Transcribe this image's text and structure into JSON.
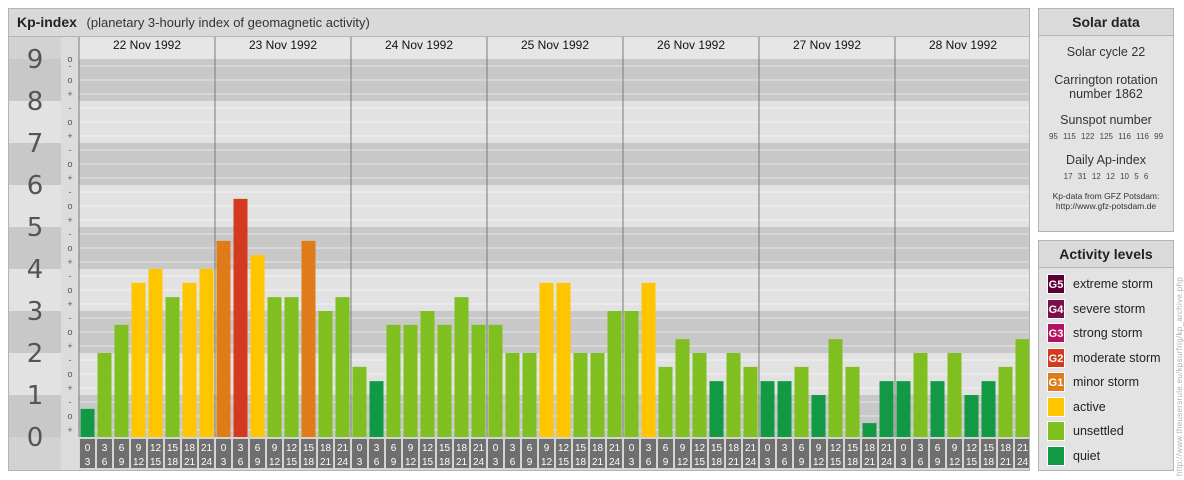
{
  "header": {
    "title": "Kp-index",
    "subtitle": "(planetary 3-hourly index of geomagnetic activity)"
  },
  "chart_data": {
    "type": "bar",
    "title": "Kp-index",
    "subtitle": "(planetary 3-hourly index of geomagnetic activity)",
    "ylim": [
      0,
      9
    ],
    "y_ticks": [
      "0",
      "1",
      "2",
      "3",
      "4",
      "5",
      "6",
      "7",
      "8",
      "9"
    ],
    "minor_tick_symbols": [
      "+",
      "o",
      "-"
    ],
    "dates": [
      "22 Nov 1992",
      "23 Nov 1992",
      "24 Nov 1992",
      "25 Nov 1992",
      "26 Nov 1992",
      "27 Nov 1992",
      "28 Nov 1992"
    ],
    "interval_start": [
      "0",
      "3",
      "6",
      "9",
      "12",
      "15",
      "18",
      "21"
    ],
    "interval_end": [
      "3",
      "6",
      "9",
      "12",
      "15",
      "18",
      "21",
      "24"
    ],
    "values": [
      [
        0.67,
        2.0,
        2.67,
        3.67,
        4.0,
        3.33,
        3.67,
        4.0
      ],
      [
        4.67,
        5.67,
        4.33,
        3.33,
        3.33,
        4.67,
        3.0,
        3.33
      ],
      [
        1.67,
        1.33,
        2.67,
        2.67,
        3.0,
        2.67,
        3.33,
        2.67
      ],
      [
        2.67,
        2.0,
        2.0,
        3.67,
        3.67,
        2.0,
        2.0,
        3.0
      ],
      [
        3.0,
        3.67,
        1.67,
        2.33,
        2.0,
        1.33,
        2.0,
        1.67
      ],
      [
        1.33,
        1.33,
        1.67,
        1.0,
        2.33,
        1.67,
        0.33,
        1.33
      ],
      [
        1.33,
        2.0,
        1.33,
        2.0,
        1.0,
        1.33,
        1.67,
        2.33
      ]
    ],
    "level_colors": {
      "quiet": "#119944",
      "unsettled": "#7fc020",
      "active": "#ffc600",
      "G1": "#e07b1a",
      "G2": "#d43a1f",
      "G3": "#b3125e",
      "G4": "#7a0f4a",
      "G5": "#5b0035"
    }
  },
  "solar": {
    "title": "Solar data",
    "cycle": "Solar cycle 22",
    "carrington_1": "Carrington rotation",
    "carrington_2": "number 1862",
    "sunspot_title": "Sunspot number",
    "sunspot_values": "95 115 122 125 116 116 99",
    "ap_title": "Daily Ap-index",
    "ap_values": "17 31 12 12 10 5 6",
    "source_1": "Kp-data from GFZ Potsdam:",
    "source_2": "http://www.gfz-potsdam.de"
  },
  "activity": {
    "title": "Activity levels",
    "items": [
      {
        "code": "G5",
        "label": "extreme storm",
        "color": "#5b0035"
      },
      {
        "code": "G4",
        "label": "severe storm",
        "color": "#7a0f4a"
      },
      {
        "code": "G3",
        "label": "strong storm",
        "color": "#b3125e"
      },
      {
        "code": "G2",
        "label": "moderate storm",
        "color": "#d43a1f"
      },
      {
        "code": "G1",
        "label": "minor storm",
        "color": "#e07b1a"
      },
      {
        "code": "",
        "label": "active",
        "color": "#ffc600"
      },
      {
        "code": "",
        "label": "unsettled",
        "color": "#7fc020"
      },
      {
        "code": "",
        "label": "quiet",
        "color": "#119944"
      }
    ]
  },
  "credit": "http://www.theusersrule.eu/kpsurfrig/kp_archive.php"
}
